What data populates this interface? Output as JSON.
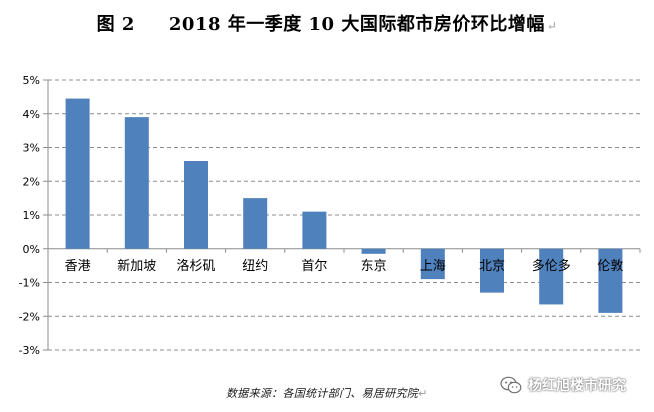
{
  "title": {
    "prefix": "图 2",
    "main": "2018 年一季度 10 大国际都市房价环比增幅",
    "mark": "↵"
  },
  "source": {
    "text": "数据来源：各国统计部门、易居研究院",
    "mark": "↵"
  },
  "watermark": {
    "text": "杨红旭楼市研究",
    "icon": "wechat-icon"
  },
  "colors": {
    "bar": "#4f81bd",
    "grid": "#8c8c8c",
    "axis": "#8c8c8c",
    "text": "#000000"
  },
  "chart_data": {
    "type": "bar",
    "title": "2018 年一季度 10 大国际都市房价环比增幅",
    "categories": [
      "香港",
      "新加坡",
      "洛杉矶",
      "纽约",
      "首尔",
      "东京",
      "上海",
      "北京",
      "多伦多",
      "伦敦"
    ],
    "values": [
      4.45,
      3.9,
      2.6,
      1.5,
      1.1,
      -0.15,
      -0.9,
      -1.3,
      -1.65,
      -1.9
    ],
    "ylim": [
      -3,
      5
    ],
    "yticks": [
      "5%",
      "4%",
      "3%",
      "2%",
      "1%",
      "0%",
      "-1%",
      "-2%",
      "-3%"
    ],
    "ytick_values": [
      5,
      4,
      3,
      2,
      1,
      0,
      -1,
      -2,
      -3
    ],
    "grid": true,
    "legend": "none",
    "xlabel": "",
    "ylabel": ""
  }
}
